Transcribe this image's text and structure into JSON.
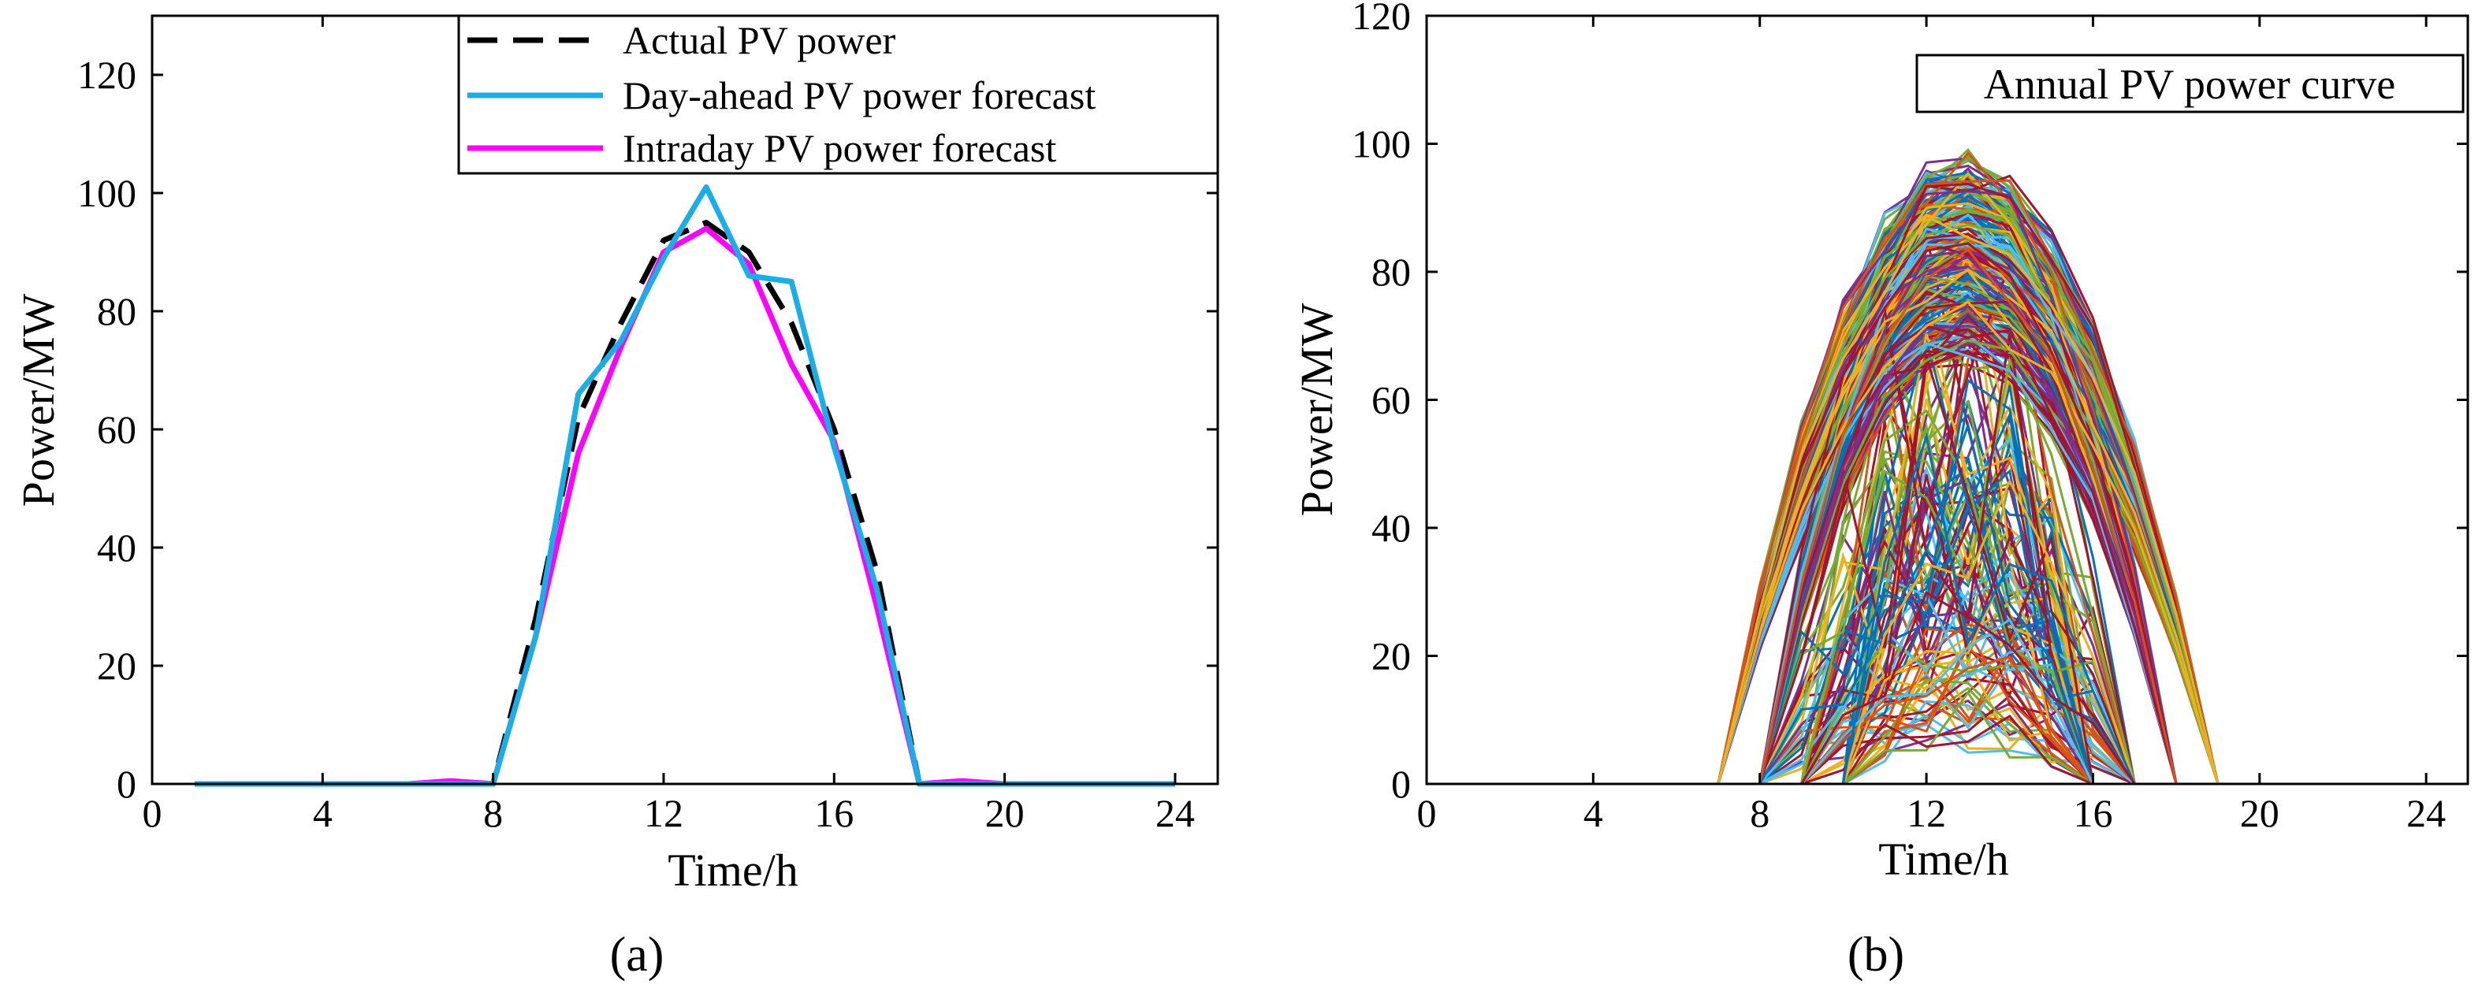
{
  "chart_data": [
    {
      "type": "line",
      "panel_label": "(a)",
      "xlabel": "Time/h",
      "ylabel": "Power/MW",
      "xlim": [
        0,
        25
      ],
      "ylim": [
        0,
        130
      ],
      "xticks": [
        "0",
        "4",
        "8",
        "12",
        "16",
        "20",
        "24"
      ],
      "yticks": [
        "0",
        "20",
        "40",
        "60",
        "80",
        "100",
        "120"
      ],
      "legend_position": "top-right",
      "x": [
        1,
        2,
        3,
        4,
        5,
        6,
        7,
        8,
        9,
        10,
        11,
        12,
        13,
        14,
        15,
        16,
        17,
        18,
        19,
        20,
        21,
        22,
        23,
        24
      ],
      "series": [
        {
          "name": "Actual PV power",
          "color": "#000000",
          "dash": "dashed",
          "values": [
            0,
            0,
            0,
            0,
            0,
            0,
            0,
            0,
            28,
            62,
            78,
            92,
            95,
            90,
            78,
            60,
            36,
            0,
            0,
            0,
            0,
            0,
            0,
            0
          ]
        },
        {
          "name": "Day-ahead PV power forecast",
          "color": "#1aaee8",
          "dash": "solid",
          "values": [
            0,
            0,
            0,
            0,
            0,
            0,
            0,
            0,
            25,
            66,
            75,
            89,
            101,
            86,
            85,
            57,
            33,
            0,
            0,
            0,
            0,
            0,
            0,
            0
          ]
        },
        {
          "name": "Intraday PV power forecast",
          "color": "#ff00ff",
          "dash": "solid",
          "values": [
            0,
            0,
            0,
            0,
            0,
            0,
            0.5,
            0,
            25,
            56,
            74,
            90,
            94,
            88,
            71,
            58,
            30,
            0,
            0.5,
            0,
            0,
            0,
            0,
            0
          ]
        }
      ]
    },
    {
      "type": "line",
      "panel_label": "(b)",
      "title": "Annual PV power  curve",
      "xlabel": "Time/h",
      "ylabel": "Power/MW",
      "xlim": [
        0,
        25
      ],
      "ylim": [
        0,
        120
      ],
      "xticks": [
        "0",
        "4",
        "8",
        "12",
        "16",
        "20",
        "24"
      ],
      "yticks": [
        "0",
        "20",
        "40",
        "60",
        "80",
        "100",
        "120"
      ],
      "x": [
        1,
        2,
        3,
        4,
        5,
        6,
        7,
        8,
        9,
        10,
        11,
        12,
        13,
        14,
        15,
        16,
        17,
        18,
        19,
        20,
        21,
        22,
        23,
        24
      ],
      "series_count": 365,
      "series_peak_max": 100,
      "palette": [
        "#0072bd",
        "#d95319",
        "#edb120",
        "#7e2f8e",
        "#77ac30",
        "#4dbeee",
        "#a2142f"
      ]
    }
  ]
}
